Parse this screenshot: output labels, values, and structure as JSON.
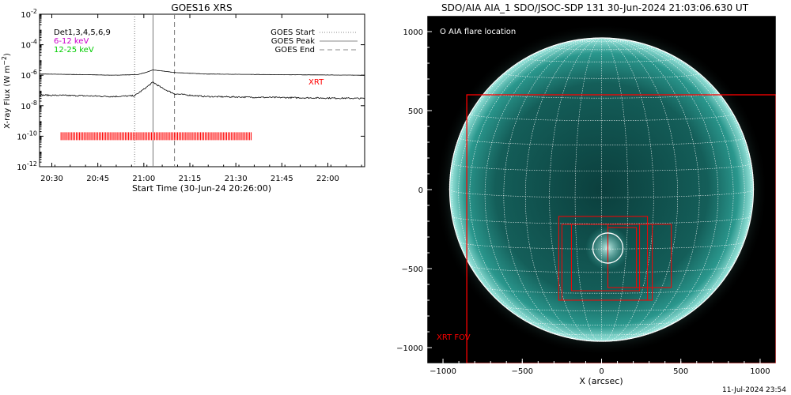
{
  "left_panel": {
    "title": "GOES16 XRS",
    "legend_left": [
      {
        "text": "Det1,3,4,5,6,9",
        "color": "#000000"
      },
      {
        "text": "6-12 keV",
        "color": "#cc00cc"
      },
      {
        "text": "12-25 keV",
        "color": "#00cc00"
      }
    ],
    "legend_right": [
      {
        "text": "GOES Start",
        "style": "dotted"
      },
      {
        "text": "GOES Peak",
        "style": "solid"
      },
      {
        "text": "GOES End",
        "style": "dashed"
      }
    ],
    "xrt_label": "XRT",
    "xrt_color": "#ff0000"
  },
  "right_panel": {
    "title": "SDO/AIA AIA_1 SDO/JSOC-SDP 131 30-Jun-2024 21:03:06.630 UT",
    "legend": "O AIA flare location",
    "fov_label": "XRT FOV",
    "xlabel": "X (arcsec)",
    "footer": "11-Jul-2024 23:54",
    "disk_color": "#2fa89c",
    "overlay_color": "#ff0000"
  },
  "chart_data": [
    {
      "type": "line",
      "title": "GOES16 XRS",
      "xlabel": "Start Time (30-Jun-24 20:26:00)",
      "ylabel": "X-ray Flux (W m^-2)",
      "yscale": "log",
      "ylim": [
        1e-12,
        0.01
      ],
      "xlim": [
        "20:26",
        "22:12"
      ],
      "x_ticks": [
        "20:30",
        "20:45",
        "21:00",
        "21:15",
        "21:30",
        "21:45",
        "22:00"
      ],
      "y_ticks": [
        "10^-2",
        "10^-4",
        "10^-6",
        "10^-8",
        "10^-10",
        "10^-12"
      ],
      "y_tick_values": [
        -2,
        -4,
        -6,
        -8,
        -10,
        -12
      ],
      "series": [
        {
          "name": "",
          "color": "#000000",
          "x": [
            "20:26",
            "20:40",
            "20:50",
            "20:58",
            "21:01",
            "21:03",
            "21:06",
            "21:10",
            "21:20",
            "21:40",
            "22:12"
          ],
          "y": [
            1.2e-06,
            1.1e-06,
            1e-06,
            1.1e-06,
            1.6e-06,
            2.2e-06,
            1.9e-06,
            1.5e-06,
            1.2e-06,
            1.1e-06,
            1e-06
          ]
        },
        {
          "name": "",
          "color": "#000000",
          "x": [
            "20:26",
            "20:40",
            "20:50",
            "20:57",
            "21:00",
            "21:03",
            "21:06",
            "21:10",
            "21:20",
            "21:40",
            "22:12"
          ],
          "y": [
            5e-08,
            4.5e-08,
            4e-08,
            4.5e-08,
            1.2e-07,
            3.5e-07,
            1.4e-07,
            6e-08,
            4e-08,
            3.5e-08,
            3e-08
          ]
        }
      ],
      "events": {
        "start": "20:57",
        "peak": "21:03",
        "end": "21:10"
      },
      "xrt_coverage": {
        "start": "20:33",
        "end": "21:35",
        "level": 1e-10,
        "color": "#ff0000"
      }
    },
    {
      "type": "image",
      "xlabel": "X (arcsec)",
      "xlim": [
        -1100,
        1100
      ],
      "ylim": [
        -1100,
        1100
      ],
      "x_ticks": [
        -1000,
        -500,
        0,
        500,
        1000
      ],
      "y_ticks": [
        1000,
        500,
        0,
        -500,
        -1000
      ],
      "solar_radius_arcsec": 960,
      "flare_location": {
        "x": 40,
        "y": -370,
        "r": 95
      },
      "xrt_fov": {
        "x0": -850,
        "x1": 1100,
        "y0": -1100,
        "y1": 600
      },
      "xrt_boxes": [
        {
          "x0": -270,
          "x1": 290,
          "y0": -700,
          "y1": -170
        },
        {
          "x0": -250,
          "x1": 320,
          "y0": -700,
          "y1": -220
        },
        {
          "x0": -190,
          "x1": 240,
          "y0": -640,
          "y1": -220
        },
        {
          "x0": 40,
          "x1": 440,
          "y0": -620,
          "y1": -220
        },
        {
          "x0": 40,
          "x1": 220,
          "y0": -620,
          "y1": -240
        }
      ]
    }
  ]
}
